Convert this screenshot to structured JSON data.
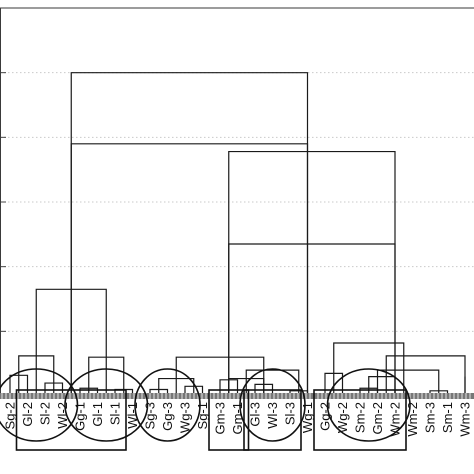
{
  "chart_data": {
    "type": "dendrogram",
    "title": "",
    "xlabel": "",
    "ylabel": "",
    "ylim": [
      0,
      6
    ],
    "y_gridlines": [
      1,
      2,
      3,
      4,
      5,
      6
    ],
    "grid": true,
    "leaves": [
      "Sg-2",
      "Gl-2",
      "Sl-2",
      "Wl-2",
      "Gg-1",
      "Gl-1",
      "Sl-1",
      "Wl-1",
      "Sg-3",
      "Gg-3",
      "Wg-3",
      "Sg-1",
      "Gm-3",
      "Gm-1",
      "Gl-3",
      "Wl-3",
      "Sl-3",
      "Wg-1",
      "Gg-2",
      "Wg-2",
      "Sm-2",
      "Gm-2",
      "Wm-2",
      "Wm-2",
      "Sm-3",
      "Sm-1",
      "Wm-3"
    ],
    "merges": [
      {
        "left": "Sg-2",
        "right": "Gl-2",
        "height": 0.32
      },
      {
        "left": "Sl-2",
        "right": "Wl-2",
        "height": 0.2
      },
      {
        "left": "Gg-1",
        "right": "Gl-1",
        "height": 0.12
      },
      {
        "left": "Sl-1",
        "right": "Wl-1",
        "height": 0.1
      },
      {
        "left": "Sg-3",
        "right": "Gg-3",
        "height": 0.1
      },
      {
        "left": "Wg-3",
        "right": "Sg-1",
        "height": 0.15
      },
      {
        "left": "Gm-3",
        "right": "Gm-1",
        "height": 0.25
      },
      {
        "left": "Gl-3",
        "right": "Wl-3",
        "height": 0.18
      },
      {
        "left": "Sl-3",
        "right": "Wg-1",
        "height": 0.08
      },
      {
        "left": "Gg-2",
        "right": "Wg-2",
        "height": 0.35
      },
      {
        "left": "Sm-2",
        "right": "Gm-2",
        "height": 0.12
      },
      {
        "left": "Wm-2",
        "right": "Wm-2",
        "height": 0.1
      },
      {
        "left": "Sm-3",
        "right": "Sm-1",
        "height": 0.08
      },
      {
        "left": "Wm-3",
        "right": "Wm-3",
        "height": 0.3
      },
      {
        "left": "Sg-2 / Gl-2",
        "right": "Sl-2 / Wl-2",
        "height": 0.62
      },
      {
        "left": "Gg-1 / Gl-1",
        "right": "Sl-1 / Wl-1",
        "height": 0.6
      },
      {
        "left": "Sg-3 / Gg-3",
        "right": "Wg-3 / Sg-1",
        "height": 0.27
      },
      {
        "left": "Gm-3 / Gm-1",
        "right": "Gl-3 / Wl-3",
        "height": 0.27
      },
      {
        "left": "Gm-3 / Gm-1 / Gl-3 / Wl-3",
        "right": "Sl-3 / Wg-1",
        "height": 0.4
      },
      {
        "left": "Sm-2 / Gm-2",
        "right": "Wm-2",
        "height": 0.3
      },
      {
        "left": "Sm-2 / Gm-2 / Wm-2",
        "right": "Sm-3 / Sm-1",
        "height": 0.4
      },
      {
        "left": "Gg-2 / Wg-2",
        "right": "Sm-2 … Sm-1",
        "height": 0.82
      },
      {
        "left": "Sg-3 … Sg-1",
        "right": "Gm-3 … Wg-1",
        "height": 0.6
      },
      {
        "left": "Gg-2 … Sm-1",
        "right": "Wm-3",
        "height": 0.62
      },
      {
        "left": "Sg-2 … Wl-2",
        "right": "Gg-1 … Wl-1",
        "height": 1.65
      },
      {
        "left": "Gg-2 … Wm-3",
        "right": "Sg-3 … Wg-1",
        "height": 2.35
      },
      {
        "left": "Sg-2 … Wl-1",
        "right": "Sg-3 … Wm-3",
        "height": 3.9
      },
      {
        "left": "Sg-3 … Wg-1",
        "right": "Gg-2 … Wm-3",
        "height": 3.78
      },
      {
        "left": "Sg-2 … Wl-1",
        "right": "Sg-3 … Wm-3",
        "height": 5.0
      }
    ],
    "group_marks": [
      {
        "shape": "ellipse",
        "members": [
          "Sg-2",
          "Gl-2",
          "Sl-2",
          "Wl-2"
        ]
      },
      {
        "shape": "ellipse",
        "members": [
          "Gg-1",
          "Gl-1",
          "Sl-1",
          "Wl-1"
        ]
      },
      {
        "shape": "ellipse",
        "members": [
          "Sg-3",
          "Gg-3",
          "Wg-3"
        ]
      },
      {
        "shape": "ellipse",
        "members": [
          "Gl-3",
          "Wl-3",
          "Sl-3"
        ]
      },
      {
        "shape": "ellipse",
        "members": [
          "Wg-2",
          "Sm-2",
          "Gm-2",
          "Wm-2"
        ]
      },
      {
        "shape": "rectangle",
        "members": [
          "Gl-2",
          "Sl-2",
          "Wl-2",
          "Gg-1",
          "Gl-1",
          "Sl-1"
        ]
      },
      {
        "shape": "rectangle",
        "members": [
          "Gm-3",
          "Gm-1"
        ]
      },
      {
        "shape": "rectangle",
        "members": [
          "Gl-3",
          "Wl-3",
          "Sl-3"
        ]
      },
      {
        "shape": "rectangle",
        "members": [
          "Gg-2",
          "Wg-2",
          "Sm-2",
          "Gm-2",
          "Wm-2"
        ]
      }
    ]
  }
}
